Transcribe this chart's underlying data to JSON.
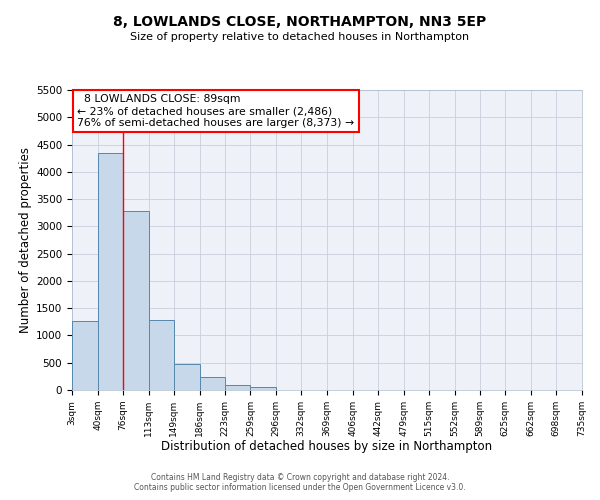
{
  "title_line1": "8, LOWLANDS CLOSE, NORTHAMPTON, NN3 5EP",
  "title_line2": "Size of property relative to detached houses in Northampton",
  "xlabel": "Distribution of detached houses by size in Northampton",
  "ylabel": "Number of detached properties",
  "bin_edges": [
    3,
    40,
    76,
    113,
    149,
    186,
    223,
    259,
    296,
    332,
    369,
    406,
    442,
    479,
    515,
    552,
    589,
    625,
    662,
    698,
    735
  ],
  "bar_heights": [
    1270,
    4340,
    3290,
    1290,
    480,
    230,
    90,
    50,
    0,
    0,
    0,
    0,
    0,
    0,
    0,
    0,
    0,
    0,
    0,
    0
  ],
  "bar_color": "#c8d8eb",
  "bar_edge_color": "#5588aa",
  "ylim": [
    0,
    5500
  ],
  "yticks": [
    0,
    500,
    1000,
    1500,
    2000,
    2500,
    3000,
    3500,
    4000,
    4500,
    5000,
    5500
  ],
  "red_line_x": 76,
  "annotation_title": "8 LOWLANDS CLOSE: 89sqm",
  "annotation_line1": "← 23% of detached houses are smaller (2,486)",
  "annotation_line2": "76% of semi-detached houses are larger (8,373) →",
  "footer_line1": "Contains HM Land Registry data © Crown copyright and database right 2024.",
  "footer_line2": "Contains public sector information licensed under the Open Government Licence v3.0.",
  "background_color": "#eef2f8",
  "grid_color": "#c8d0dc",
  "tick_labels": [
    "3sqm",
    "40sqm",
    "76sqm",
    "113sqm",
    "149sqm",
    "186sqm",
    "223sqm",
    "259sqm",
    "296sqm",
    "332sqm",
    "369sqm",
    "406sqm",
    "442sqm",
    "479sqm",
    "515sqm",
    "552sqm",
    "589sqm",
    "625sqm",
    "662sqm",
    "698sqm",
    "735sqm"
  ]
}
